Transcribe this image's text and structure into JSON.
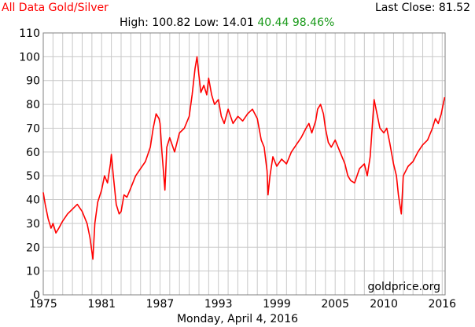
{
  "header": {
    "title": "All Data Gold/Silver",
    "last_close_label": "Last Close:",
    "last_close_value": "81.52",
    "high_label": "High:",
    "high_value": "100.82",
    "low_label": "Low:",
    "low_value": "14.01",
    "change_value": "40.44",
    "change_pct": "98.46%"
  },
  "footer": {
    "date": "Monday, April 4, 2016",
    "watermark": "goldprice.org"
  },
  "colors": {
    "title": "#ff0000",
    "line": "#ff0000",
    "change": "#1a9a1a",
    "grid": "#c8c8c8"
  },
  "chart_data": {
    "type": "line",
    "title": "All Data Gold/Silver",
    "xlabel": "",
    "ylabel": "",
    "xlim": [
      1975,
      2016.3
    ],
    "ylim": [
      0,
      110
    ],
    "x_ticks": [
      1975,
      1981,
      1987,
      1993,
      1999,
      2005,
      2010,
      2016
    ],
    "x_tick_labels": [
      "1975",
      "1981",
      "1987",
      "1993",
      "1999",
      "2005",
      "2010",
      "2016"
    ],
    "y_ticks": [
      0,
      10,
      20,
      30,
      40,
      50,
      60,
      70,
      80,
      90,
      100,
      110
    ],
    "y_tick_labels": [
      "0",
      "10",
      "20",
      "30",
      "40",
      "50",
      "60",
      "70",
      "80",
      "90",
      "100",
      "110"
    ],
    "grid": true,
    "series": [
      {
        "x": [
          1975.0,
          1975.2,
          1975.5,
          1975.8,
          1976.0,
          1976.3,
          1976.6,
          1977.0,
          1977.5,
          1978.0,
          1978.5,
          1979.0,
          1979.5,
          1979.8,
          1980.0,
          1980.1,
          1980.3,
          1980.6,
          1981.0,
          1981.3,
          1981.6,
          1981.9,
          1982.0,
          1982.2,
          1982.5,
          1982.8,
          1983.0,
          1983.3,
          1983.6,
          1984.0,
          1984.5,
          1985.0,
          1985.5,
          1986.0,
          1986.3,
          1986.6,
          1986.9,
          1987.0,
          1987.2,
          1987.5,
          1987.7,
          1988.0,
          1988.5,
          1989.0,
          1989.5,
          1990.0,
          1990.3,
          1990.6,
          1990.8,
          1991.0,
          1991.2,
          1991.5,
          1991.8,
          1992.0,
          1992.3,
          1992.6,
          1993.0,
          1993.3,
          1993.6,
          1994.0,
          1994.5,
          1995.0,
          1995.5,
          1996.0,
          1996.5,
          1997.0,
          1997.4,
          1997.7,
          1998.0,
          1998.1,
          1998.3,
          1998.6,
          1999.0,
          1999.5,
          2000.0,
          2000.5,
          2001.0,
          2001.5,
          2002.0,
          2002.3,
          2002.6,
          2003.0,
          2003.2,
          2003.5,
          2003.8,
          2004.0,
          2004.3,
          2004.6,
          2005.0,
          2005.5,
          2006.0,
          2006.3,
          2006.6,
          2007.0,
          2007.5,
          2008.0,
          2008.3,
          2008.6,
          2008.8,
          2009.0,
          2009.3,
          2009.6,
          2010.0,
          2010.3,
          2010.6,
          2011.0,
          2011.3,
          2011.5,
          2011.8,
          2012.0,
          2012.5,
          2013.0,
          2013.5,
          2014.0,
          2014.5,
          2015.0,
          2015.3,
          2015.6,
          2015.9,
          2016.1,
          2016.25
        ],
        "y": [
          43,
          38,
          32,
          28,
          30,
          26,
          28,
          31,
          34,
          36,
          38,
          35,
          30,
          24,
          18,
          15,
          30,
          39,
          44,
          50,
          47,
          55,
          59,
          50,
          38,
          34,
          35,
          42,
          41,
          45,
          50,
          53,
          56,
          62,
          70,
          76,
          74,
          72,
          60,
          44,
          62,
          66,
          60,
          68,
          70,
          75,
          84,
          95,
          100,
          92,
          85,
          88,
          84,
          91,
          84,
          80,
          82,
          75,
          72,
          78,
          72,
          75,
          73,
          76,
          78,
          74,
          65,
          62,
          52,
          42,
          50,
          58,
          54,
          57,
          55,
          60,
          63,
          66,
          70,
          72,
          68,
          73,
          78,
          80,
          76,
          70,
          64,
          62,
          65,
          60,
          55,
          50,
          48,
          47,
          53,
          55,
          50,
          58,
          70,
          82,
          76,
          70,
          68,
          70,
          64,
          55,
          50,
          42,
          34,
          50,
          54,
          56,
          60,
          63,
          65,
          70,
          74,
          72,
          76,
          80,
          83
        ]
      }
    ]
  }
}
